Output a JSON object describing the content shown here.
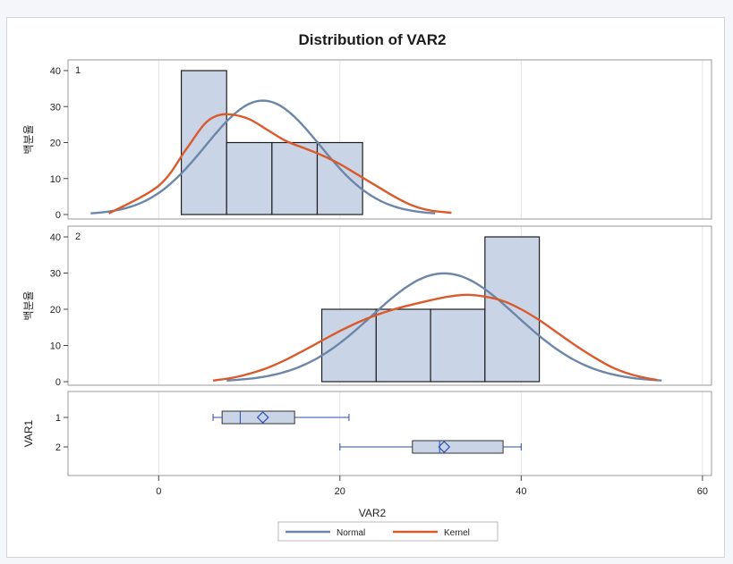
{
  "chart_data": {
    "type": "histogram",
    "title": "Distribution of VAR2",
    "xlabel": "VAR2",
    "ylabel": "백분율",
    "xlim": [
      -10,
      61
    ],
    "xticks": [
      0,
      20,
      40,
      60
    ],
    "panels": [
      {
        "label": "1",
        "ylim": [
          0,
          41
        ],
        "yticks": [
          0,
          10,
          20,
          30,
          40
        ],
        "bins": [
          {
            "start": 2.5,
            "end": 7.5,
            "value": 40
          },
          {
            "start": 7.5,
            "end": 12.5,
            "value": 20
          },
          {
            "start": 12.5,
            "end": 17.5,
            "value": 20
          },
          {
            "start": 17.5,
            "end": 22.5,
            "value": 20
          }
        ],
        "normal": {
          "mean": 11.5,
          "sd": 6.3,
          "scale": 500,
          "range": [
            -7.5,
            30.5
          ]
        },
        "kernel": {
          "points": [
            [
              -5.5,
              0.3
            ],
            [
              0,
              8
            ],
            [
              3,
              18
            ],
            [
              5,
              25
            ],
            [
              6.5,
              27.5
            ],
            [
              8,
              27.8
            ],
            [
              10,
              26.5
            ],
            [
              12,
              23.5
            ],
            [
              14,
              20.5
            ],
            [
              16,
              18.5
            ],
            [
              18,
              16.5
            ],
            [
              20,
              14
            ],
            [
              22,
              11
            ],
            [
              24,
              8
            ],
            [
              26,
              5
            ],
            [
              28,
              2.5
            ],
            [
              30,
              1.1
            ],
            [
              32.3,
              0.5
            ]
          ]
        }
      },
      {
        "label": "2",
        "ylim": [
          0,
          41
        ],
        "yticks": [
          0,
          10,
          20,
          30,
          40
        ],
        "bins": [
          {
            "start": 18,
            "end": 24,
            "value": 20
          },
          {
            "start": 24,
            "end": 30,
            "value": 20
          },
          {
            "start": 30,
            "end": 36,
            "value": 20
          },
          {
            "start": 36,
            "end": 42,
            "value": 40
          }
        ],
        "normal": {
          "mean": 31.5,
          "sd": 8.0,
          "scale": 600,
          "range": [
            7.5,
            55.5
          ]
        },
        "kernel": {
          "points": [
            [
              6,
              0.3
            ],
            [
              8,
              1
            ],
            [
              10,
              2.2
            ],
            [
              12,
              3.8
            ],
            [
              14,
              6
            ],
            [
              16,
              8.6
            ],
            [
              18,
              11.3
            ],
            [
              20,
              14
            ],
            [
              22,
              16.4
            ],
            [
              24,
              18.4
            ],
            [
              26,
              20
            ],
            [
              28,
              21.3
            ],
            [
              30,
              22.5
            ],
            [
              32,
              23.5
            ],
            [
              34,
              24
            ],
            [
              36,
              23.5
            ],
            [
              38,
              22.3
            ],
            [
              40,
              20
            ],
            [
              42,
              17
            ],
            [
              44,
              13.5
            ],
            [
              46,
              10
            ],
            [
              48,
              6.8
            ],
            [
              50,
              4
            ],
            [
              52,
              2.1
            ],
            [
              54,
              0.9
            ],
            [
              55,
              0.5
            ]
          ]
        }
      }
    ],
    "boxplot": {
      "ylabel": "VAR1",
      "groups": [
        {
          "label": "1",
          "min": 6,
          "q1": 7,
          "median": 9,
          "q3": 15,
          "max": 21,
          "mean": 11.5
        },
        {
          "label": "2",
          "min": 20,
          "q1": 28,
          "median": 31,
          "q3": 38,
          "max": 40,
          "mean": 31.5
        }
      ]
    },
    "legend": [
      {
        "name": "Normal",
        "color": "#6c86a8"
      },
      {
        "name": "Kernel",
        "color": "#db5a2c"
      }
    ],
    "legend_position": "bottom"
  },
  "colors": {
    "bar_fill": "#c9d4e6",
    "bar_stroke": "#1f1f1f",
    "normal": "#6c86a8",
    "kernel": "#db5a2c",
    "box_stroke": "#2a4bb8",
    "grid": "#e3e3e3"
  }
}
